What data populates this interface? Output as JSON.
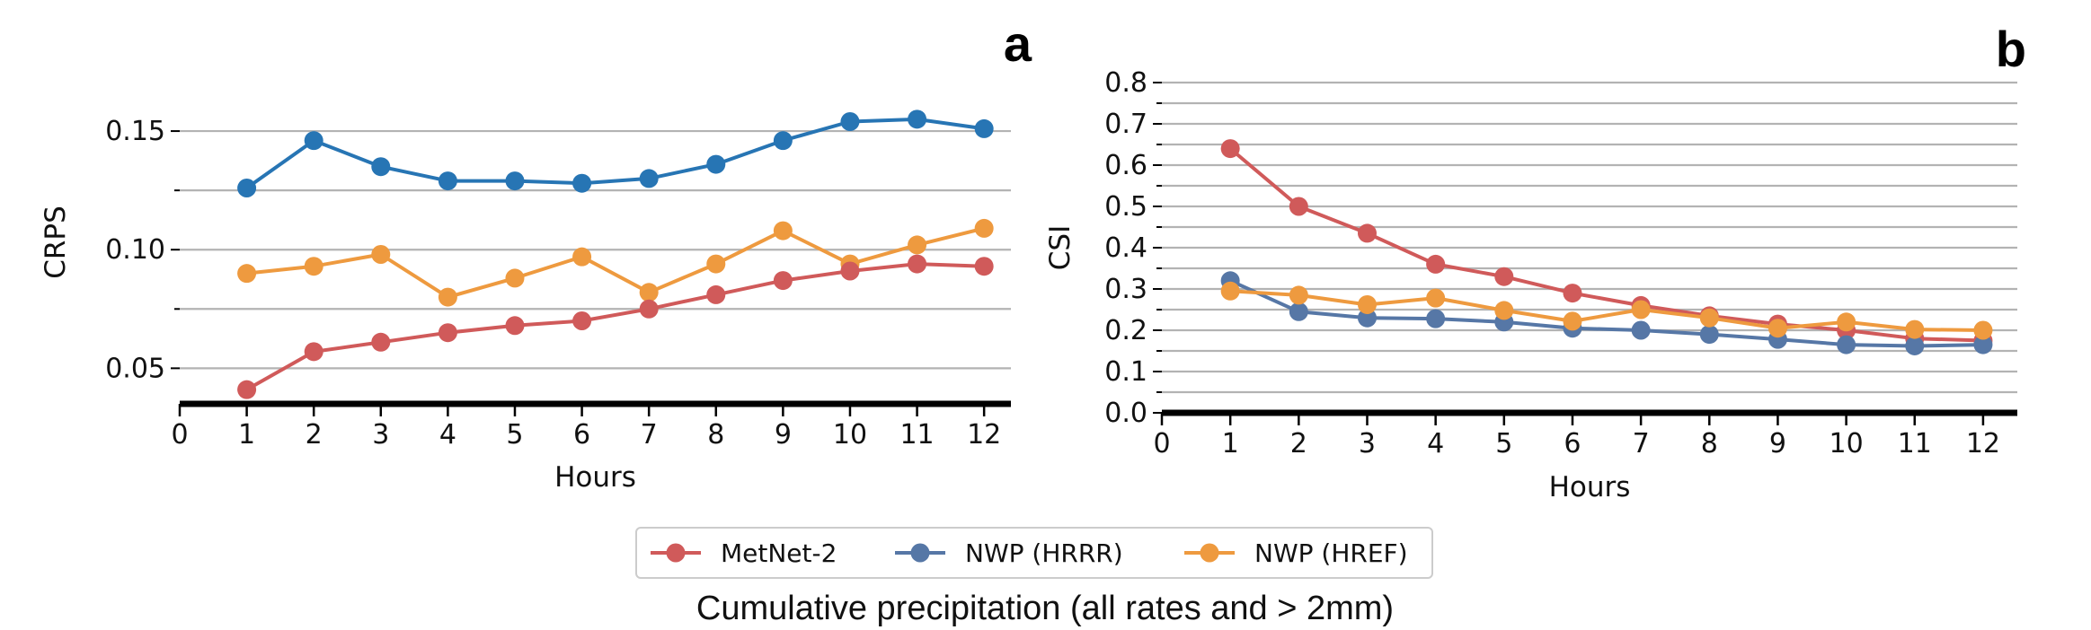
{
  "colors": {
    "metnet": "#d05a5a",
    "hrrr": "#5677a6",
    "href": "#ee9a3f",
    "crps_metnet2": "#2775b4",
    "grid": "#b3b3b3",
    "axis": "#000000"
  },
  "legend": {
    "items": [
      {
        "label": "MetNet-2",
        "color": "#d05a5a"
      },
      {
        "label": "NWP (HRRR)",
        "color": "#5677a6"
      },
      {
        "label": "NWP (HREF)",
        "color": "#ee9a3f"
      }
    ]
  },
  "caption": "Cumulative precipitation (all rates and > 2mm)",
  "chart_data": [
    {
      "type": "line",
      "panel": "a",
      "title": "",
      "xlabel": "Hours",
      "ylabel": "CRPS",
      "x": [
        1,
        2,
        3,
        4,
        5,
        6,
        7,
        8,
        9,
        10,
        11,
        12
      ],
      "xticks": [
        "0",
        "1",
        "2",
        "3",
        "4",
        "5",
        "6",
        "7",
        "8",
        "9",
        "10",
        "11",
        "12"
      ],
      "xlim": [
        0,
        12.4
      ],
      "ylim": [
        0.035,
        0.175
      ],
      "yticks": [
        "0.05",
        "0.10",
        "0.15"
      ],
      "ytick_values": [
        0.05,
        0.1,
        0.15
      ],
      "minor_yticks": [
        0.075,
        0.125
      ],
      "grid": "horizontal",
      "series": [
        {
          "color": "#2775b4",
          "values": [
            0.126,
            0.146,
            0.135,
            0.129,
            0.129,
            0.128,
            0.13,
            0.136,
            0.146,
            0.154,
            0.155,
            0.151
          ]
        },
        {
          "color": "#ee9a3f",
          "values": [
            0.09,
            0.093,
            0.098,
            0.08,
            0.088,
            0.097,
            0.082,
            0.094,
            0.108,
            0.094,
            0.102,
            0.109
          ]
        },
        {
          "color": "#d05a5a",
          "values": [
            0.041,
            0.057,
            0.061,
            0.065,
            0.068,
            0.07,
            0.075,
            0.081,
            0.087,
            0.091,
            0.094,
            0.093
          ]
        }
      ]
    },
    {
      "type": "line",
      "panel": "b",
      "title": "",
      "xlabel": "Hours",
      "ylabel": "CSI",
      "x": [
        1,
        2,
        3,
        4,
        5,
        6,
        7,
        8,
        9,
        10,
        11,
        12
      ],
      "xticks": [
        "0",
        "1",
        "2",
        "3",
        "4",
        "5",
        "6",
        "7",
        "8",
        "9",
        "10",
        "11",
        "12"
      ],
      "xlim": [
        0,
        12.5
      ],
      "ylim": [
        0,
        0.8
      ],
      "yticks": [
        "0.0",
        "0.1",
        "0.2",
        "0.3",
        "0.4",
        "0.5",
        "0.6",
        "0.7",
        "0.8"
      ],
      "ytick_values": [
        0,
        0.1,
        0.2,
        0.3,
        0.4,
        0.5,
        0.6,
        0.7,
        0.8
      ],
      "minor_yticks": [
        0.05,
        0.15,
        0.25,
        0.35,
        0.45,
        0.55,
        0.65,
        0.75
      ],
      "grid": "horizontal",
      "series": [
        {
          "name": "MetNet-2",
          "color": "#d05a5a",
          "values": [
            0.64,
            0.5,
            0.435,
            0.36,
            0.33,
            0.29,
            0.26,
            0.235,
            0.215,
            0.2,
            0.18,
            0.175
          ]
        },
        {
          "name": "NWP (HRRR)",
          "color": "#5677a6",
          "values": [
            0.32,
            0.245,
            0.23,
            0.228,
            0.22,
            0.205,
            0.2,
            0.19,
            0.178,
            0.165,
            0.162,
            0.165
          ]
        },
        {
          "name": "NWP (HREF)",
          "color": "#ee9a3f",
          "values": [
            0.295,
            0.285,
            0.262,
            0.278,
            0.248,
            0.222,
            0.25,
            0.23,
            0.205,
            0.22,
            0.202,
            0.2
          ]
        }
      ]
    }
  ]
}
